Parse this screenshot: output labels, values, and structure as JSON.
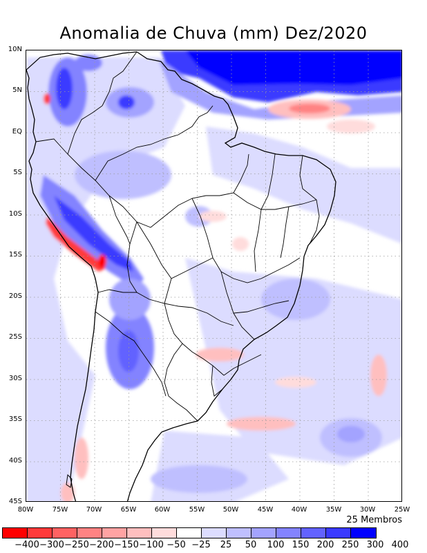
{
  "title": "Anomalia de Chuva (mm) Dez/2020",
  "lat_labels": [
    "10N",
    "5N",
    "EQ",
    "5S",
    "10S",
    "15S",
    "20S",
    "25S",
    "30S",
    "35S",
    "40S",
    "45S"
  ],
  "lon_labels": [
    "80W",
    "75W",
    "70W",
    "65W",
    "60W",
    "55W",
    "50W",
    "45W",
    "40W",
    "35W",
    "30W",
    "25W"
  ],
  "members_label": "25 Membros",
  "colorbar": {
    "colors": [
      "#ff0000",
      "#ff3a3a",
      "#ff6262",
      "#ff8383",
      "#ffa3a3",
      "#ffbfbf",
      "#ffdcdc",
      "#ffffff",
      "#dcdcff",
      "#bfbfff",
      "#a3a3ff",
      "#8383ff",
      "#6262ff",
      "#3a3aff",
      "#0000ff"
    ],
    "labels": [
      "-400",
      "-300",
      "-250",
      "-200",
      "-150",
      "-100",
      "-50",
      "-25",
      "25",
      "50",
      "100",
      "150",
      "200",
      "250",
      "300",
      "400"
    ]
  },
  "chart_data": {
    "type": "map",
    "variable": "Anomalia de Chuva (mm)",
    "period": "Dez/2020",
    "lat_range": [
      -45,
      10
    ],
    "lon_range": [
      -80,
      -25
    ],
    "levels": [
      -400,
      -300,
      -250,
      -200,
      -150,
      -100,
      -50,
      -25,
      25,
      50,
      100,
      150,
      200,
      250,
      300,
      400
    ],
    "ensemble_members": 25
  }
}
